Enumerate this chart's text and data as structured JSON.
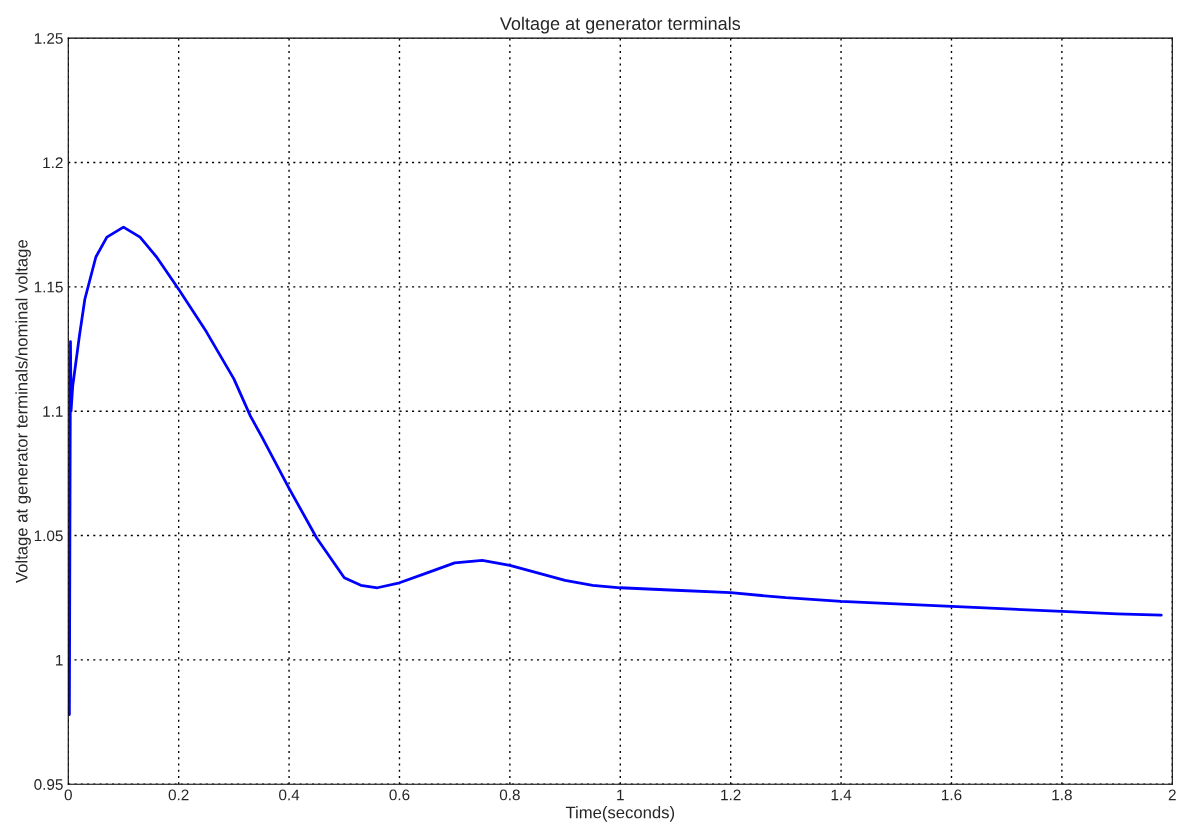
{
  "chart_data": {
    "type": "line",
    "title": "Voltage at generator terminals",
    "xlabel": "Time(seconds)",
    "ylabel": "Voltage at generator terminals/nominal voltage",
    "x": [
      0,
      0.002,
      0.004,
      0.005,
      0.008,
      0.02,
      0.03,
      0.05,
      0.07,
      0.1,
      0.13,
      0.16,
      0.2,
      0.25,
      0.3,
      0.33,
      0.35,
      0.4,
      0.45,
      0.5,
      0.53,
      0.56,
      0.6,
      0.65,
      0.7,
      0.75,
      0.8,
      0.85,
      0.9,
      0.95,
      1.0,
      1.1,
      1.2,
      1.3,
      1.4,
      1.5,
      1.6,
      1.7,
      1.8,
      1.9,
      1.98
    ],
    "series": [
      {
        "color": "#0000ff",
        "values": [
          1.0,
          0.978,
          1.128,
          1.1,
          1.11,
          1.13,
          1.145,
          1.162,
          1.17,
          1.174,
          1.17,
          1.162,
          1.149,
          1.132,
          1.113,
          1.098,
          1.09,
          1.069,
          1.049,
          1.033,
          1.03,
          1.029,
          1.031,
          1.035,
          1.039,
          1.04,
          1.038,
          1.035,
          1.032,
          1.03,
          1.029,
          1.028,
          1.027,
          1.025,
          1.0235,
          1.0225,
          1.0215,
          1.0205,
          1.0195,
          1.0185,
          1.018
        ]
      }
    ],
    "xlim": [
      0,
      2
    ],
    "xticks": [
      0,
      0.2,
      0.4,
      0.6,
      0.8,
      1,
      1.2,
      1.4,
      1.6,
      1.8,
      2
    ],
    "ylim": [
      0.95,
      1.25
    ],
    "yticks": [
      0.95,
      1,
      1.05,
      1.1,
      1.15,
      1.2,
      1.25
    ],
    "grid": true,
    "line_style": "solid",
    "marker": "none"
  }
}
